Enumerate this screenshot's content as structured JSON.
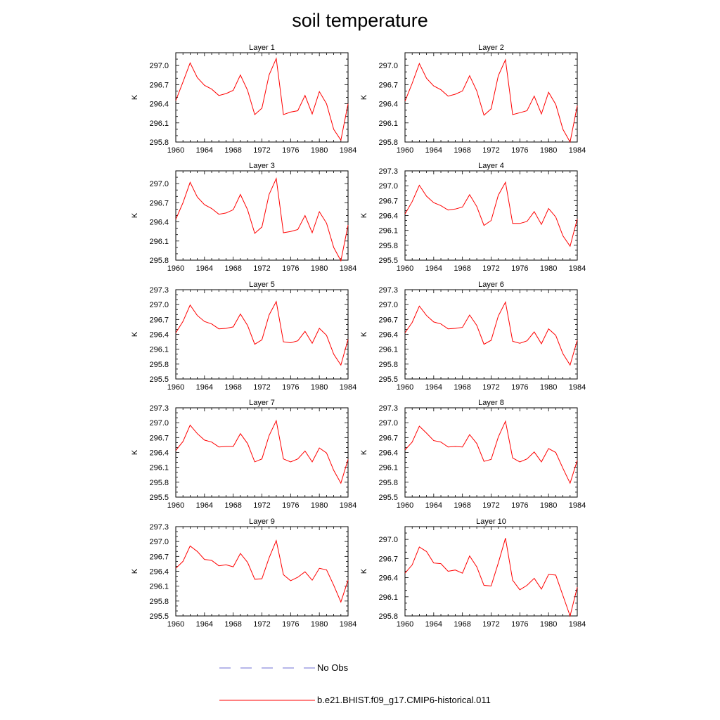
{
  "title": "soil temperature",
  "colors": {
    "model_line": "#ff0000",
    "obs_line": "#6f6fd6",
    "axis": "#000000"
  },
  "legend": {
    "obs_label": "No Obs",
    "model_label": "b.e21.BHIST.f09_g17.CMIP6-historical.011"
  },
  "chart_data": [
    {
      "type": "line",
      "title": "Layer 1",
      "ylabel": "K",
      "xlabel": "",
      "xlim": [
        1960,
        1984
      ],
      "ylim": [
        295.8,
        297.2
      ],
      "x_ticks": [
        "1960",
        "1964",
        "1968",
        "1972",
        "1976",
        "1980",
        "1984"
      ],
      "y_ticks": [
        "295.8",
        "296.1",
        "296.4",
        "296.7",
        "297.0"
      ],
      "series": [
        {
          "x": [
            1960,
            1961,
            1962,
            1963,
            1964,
            1965,
            1966,
            1967,
            1968,
            1969,
            1970,
            1971,
            1972,
            1973,
            1974,
            1975,
            1976,
            1977,
            1978,
            1979,
            1980,
            1981,
            1982,
            1983,
            1984
          ],
          "y": [
            296.45,
            296.74,
            297.04,
            296.81,
            296.69,
            296.63,
            296.53,
            296.56,
            296.61,
            296.85,
            296.61,
            296.23,
            296.33,
            296.85,
            297.11,
            296.23,
            296.27,
            296.29,
            296.53,
            296.24,
            296.59,
            296.4,
            296.0,
            295.83,
            296.4
          ]
        }
      ]
    },
    {
      "type": "line",
      "title": "Layer 2",
      "ylabel": "K",
      "xlabel": "",
      "xlim": [
        1960,
        1984
      ],
      "ylim": [
        295.8,
        297.2
      ],
      "x_ticks": [
        "1960",
        "1964",
        "1968",
        "1972",
        "1976",
        "1980",
        "1984"
      ],
      "y_ticks": [
        "295.8",
        "296.1",
        "296.4",
        "296.7",
        "297.0"
      ],
      "series": [
        {
          "x": [
            1960,
            1961,
            1962,
            1963,
            1964,
            1965,
            1966,
            1967,
            1968,
            1969,
            1970,
            1971,
            1972,
            1973,
            1974,
            1975,
            1976,
            1977,
            1978,
            1979,
            1980,
            1981,
            1982,
            1983,
            1984
          ],
          "y": [
            296.44,
            296.72,
            297.03,
            296.8,
            296.68,
            296.62,
            296.52,
            296.55,
            296.6,
            296.84,
            296.6,
            296.22,
            296.32,
            296.84,
            297.09,
            296.23,
            296.26,
            296.29,
            296.52,
            296.24,
            296.58,
            296.39,
            296.0,
            295.8,
            296.37
          ]
        }
      ]
    },
    {
      "type": "line",
      "title": "Layer 3",
      "ylabel": "K",
      "xlabel": "",
      "xlim": [
        1960,
        1984
      ],
      "ylim": [
        295.8,
        297.2
      ],
      "x_ticks": [
        "1960",
        "1964",
        "1968",
        "1972",
        "1976",
        "1980",
        "1984"
      ],
      "y_ticks": [
        "295.8",
        "296.1",
        "296.4",
        "296.7",
        "297.0"
      ],
      "series": [
        {
          "x": [
            1960,
            1961,
            1962,
            1963,
            1964,
            1965,
            1966,
            1967,
            1968,
            1969,
            1970,
            1971,
            1972,
            1973,
            1974,
            1975,
            1976,
            1977,
            1978,
            1979,
            1980,
            1981,
            1982,
            1983,
            1984
          ],
          "y": [
            296.44,
            296.7,
            297.02,
            296.79,
            296.67,
            296.61,
            296.52,
            296.54,
            296.59,
            296.83,
            296.59,
            296.22,
            296.32,
            296.83,
            297.08,
            296.23,
            296.25,
            296.28,
            296.5,
            296.23,
            296.56,
            296.38,
            296.0,
            295.79,
            296.35
          ]
        }
      ]
    },
    {
      "type": "line",
      "title": "Layer 4",
      "ylabel": "K",
      "xlabel": "",
      "xlim": [
        1960,
        1984
      ],
      "ylim": [
        295.5,
        297.3
      ],
      "x_ticks": [
        "1960",
        "1964",
        "1968",
        "1972",
        "1976",
        "1980",
        "1984"
      ],
      "y_ticks": [
        "295.5",
        "295.8",
        "296.1",
        "296.4",
        "296.7",
        "297.0",
        "297.3"
      ],
      "series": [
        {
          "x": [
            1960,
            1961,
            1962,
            1963,
            1964,
            1965,
            1966,
            1967,
            1968,
            1969,
            1970,
            1971,
            1972,
            1973,
            1974,
            1975,
            1976,
            1977,
            1978,
            1979,
            1980,
            1981,
            1982,
            1983,
            1984
          ],
          "y": [
            296.43,
            296.68,
            297.01,
            296.79,
            296.66,
            296.6,
            296.51,
            296.53,
            296.57,
            296.82,
            296.58,
            296.2,
            296.3,
            296.81,
            297.07,
            296.24,
            296.24,
            296.28,
            296.48,
            296.22,
            296.54,
            296.37,
            295.99,
            295.78,
            296.33
          ]
        }
      ]
    },
    {
      "type": "line",
      "title": "Layer 5",
      "ylabel": "K",
      "xlabel": "",
      "xlim": [
        1960,
        1984
      ],
      "ylim": [
        295.5,
        297.3
      ],
      "x_ticks": [
        "1960",
        "1964",
        "1968",
        "1972",
        "1976",
        "1980",
        "1984"
      ],
      "y_ticks": [
        "295.5",
        "295.8",
        "296.1",
        "296.4",
        "296.7",
        "297.0",
        "297.3"
      ],
      "series": [
        {
          "x": [
            1960,
            1961,
            1962,
            1963,
            1964,
            1965,
            1966,
            1967,
            1968,
            1969,
            1970,
            1971,
            1972,
            1973,
            1974,
            1975,
            1976,
            1977,
            1978,
            1979,
            1980,
            1981,
            1982,
            1983,
            1984
          ],
          "y": [
            296.43,
            296.66,
            296.99,
            296.78,
            296.66,
            296.61,
            296.51,
            296.52,
            296.55,
            296.81,
            296.58,
            296.2,
            296.29,
            296.79,
            297.06,
            296.25,
            296.23,
            296.27,
            296.46,
            296.22,
            296.52,
            296.38,
            296.0,
            295.78,
            296.3
          ]
        }
      ]
    },
    {
      "type": "line",
      "title": "Layer 6",
      "ylabel": "K",
      "xlabel": "",
      "xlim": [
        1960,
        1984
      ],
      "ylim": [
        295.5,
        297.3
      ],
      "x_ticks": [
        "1960",
        "1964",
        "1968",
        "1972",
        "1976",
        "1980",
        "1984"
      ],
      "y_ticks": [
        "295.5",
        "295.8",
        "296.1",
        "296.4",
        "296.7",
        "297.0",
        "297.3"
      ],
      "series": [
        {
          "x": [
            1960,
            1961,
            1962,
            1963,
            1964,
            1965,
            1966,
            1967,
            1968,
            1969,
            1970,
            1971,
            1972,
            1973,
            1974,
            1975,
            1976,
            1977,
            1978,
            1979,
            1980,
            1981,
            1982,
            1983,
            1984
          ],
          "y": [
            296.43,
            296.64,
            296.97,
            296.78,
            296.65,
            296.61,
            296.51,
            296.52,
            296.54,
            296.79,
            296.58,
            296.2,
            296.28,
            296.77,
            297.05,
            296.26,
            296.22,
            296.27,
            296.45,
            296.21,
            296.51,
            296.38,
            296.01,
            295.78,
            296.28
          ]
        }
      ]
    },
    {
      "type": "line",
      "title": "Layer 7",
      "ylabel": "K",
      "xlabel": "",
      "xlim": [
        1960,
        1984
      ],
      "ylim": [
        295.5,
        297.3
      ],
      "x_ticks": [
        "1960",
        "1964",
        "1968",
        "1972",
        "1976",
        "1980",
        "1984"
      ],
      "y_ticks": [
        "295.5",
        "295.8",
        "296.1",
        "296.4",
        "296.7",
        "297.0",
        "297.3"
      ],
      "series": [
        {
          "x": [
            1960,
            1961,
            1962,
            1963,
            1964,
            1965,
            1966,
            1967,
            1968,
            1969,
            1970,
            1971,
            1972,
            1973,
            1974,
            1975,
            1976,
            1977,
            1978,
            1979,
            1980,
            1981,
            1982,
            1983,
            1984
          ],
          "y": [
            296.44,
            296.62,
            296.95,
            296.78,
            296.65,
            296.61,
            296.51,
            296.52,
            296.52,
            296.78,
            296.58,
            296.21,
            296.27,
            296.74,
            297.04,
            296.27,
            296.21,
            296.27,
            296.43,
            296.21,
            296.49,
            296.39,
            296.04,
            295.78,
            296.26
          ]
        }
      ]
    },
    {
      "type": "line",
      "title": "Layer 8",
      "ylabel": "K",
      "xlabel": "",
      "xlim": [
        1960,
        1984
      ],
      "ylim": [
        295.5,
        297.3
      ],
      "x_ticks": [
        "1960",
        "1964",
        "1968",
        "1972",
        "1976",
        "1980",
        "1984"
      ],
      "y_ticks": [
        "295.5",
        "295.8",
        "296.1",
        "296.4",
        "296.7",
        "297.0",
        "297.3"
      ],
      "series": [
        {
          "x": [
            1960,
            1961,
            1962,
            1963,
            1964,
            1965,
            1966,
            1967,
            1968,
            1969,
            1970,
            1971,
            1972,
            1973,
            1974,
            1975,
            1976,
            1977,
            1978,
            1979,
            1980,
            1981,
            1982,
            1983,
            1984
          ],
          "y": [
            296.45,
            296.61,
            296.93,
            296.79,
            296.64,
            296.61,
            296.51,
            296.52,
            296.51,
            296.76,
            296.58,
            296.22,
            296.26,
            296.71,
            297.03,
            296.29,
            296.21,
            296.27,
            296.41,
            296.21,
            296.48,
            296.4,
            296.08,
            295.78,
            296.24
          ]
        }
      ]
    },
    {
      "type": "line",
      "title": "Layer 9",
      "ylabel": "K",
      "xlabel": "",
      "xlim": [
        1960,
        1984
      ],
      "ylim": [
        295.5,
        297.3
      ],
      "x_ticks": [
        "1960",
        "1964",
        "1968",
        "1972",
        "1976",
        "1980",
        "1984"
      ],
      "y_ticks": [
        "295.5",
        "295.8",
        "296.1",
        "296.4",
        "296.7",
        "297.0",
        "297.3"
      ],
      "series": [
        {
          "x": [
            1960,
            1961,
            1962,
            1963,
            1964,
            1965,
            1966,
            1967,
            1968,
            1969,
            1970,
            1971,
            1972,
            1973,
            1974,
            1975,
            1976,
            1977,
            1978,
            1979,
            1980,
            1981,
            1982,
            1983,
            1984
          ],
          "y": [
            296.46,
            296.6,
            296.91,
            296.8,
            296.64,
            296.62,
            296.51,
            296.53,
            296.49,
            296.76,
            296.58,
            296.24,
            296.25,
            296.67,
            297.02,
            296.33,
            296.21,
            296.28,
            296.39,
            296.22,
            296.46,
            296.43,
            296.12,
            295.78,
            296.22
          ]
        }
      ]
    },
    {
      "type": "line",
      "title": "Layer 10",
      "ylabel": "K",
      "xlabel": "",
      "xlim": [
        1960,
        1984
      ],
      "ylim": [
        295.8,
        297.2
      ],
      "x_ticks": [
        "1960",
        "1964",
        "1968",
        "1972",
        "1976",
        "1980",
        "1984"
      ],
      "y_ticks": [
        "295.8",
        "296.1",
        "296.4",
        "296.7",
        "297.0"
      ],
      "series": [
        {
          "x": [
            1960,
            1961,
            1962,
            1963,
            1964,
            1965,
            1966,
            1967,
            1968,
            1969,
            1970,
            1971,
            1972,
            1973,
            1974,
            1975,
            1976,
            1977,
            1978,
            1979,
            1980,
            1981,
            1982,
            1983,
            1984
          ],
          "y": [
            296.47,
            296.6,
            296.88,
            296.81,
            296.63,
            296.62,
            296.5,
            296.52,
            296.47,
            296.74,
            296.57,
            296.28,
            296.27,
            296.63,
            297.02,
            296.36,
            296.21,
            296.28,
            296.39,
            296.22,
            296.45,
            296.44,
            296.12,
            295.8,
            296.25
          ]
        }
      ]
    }
  ]
}
